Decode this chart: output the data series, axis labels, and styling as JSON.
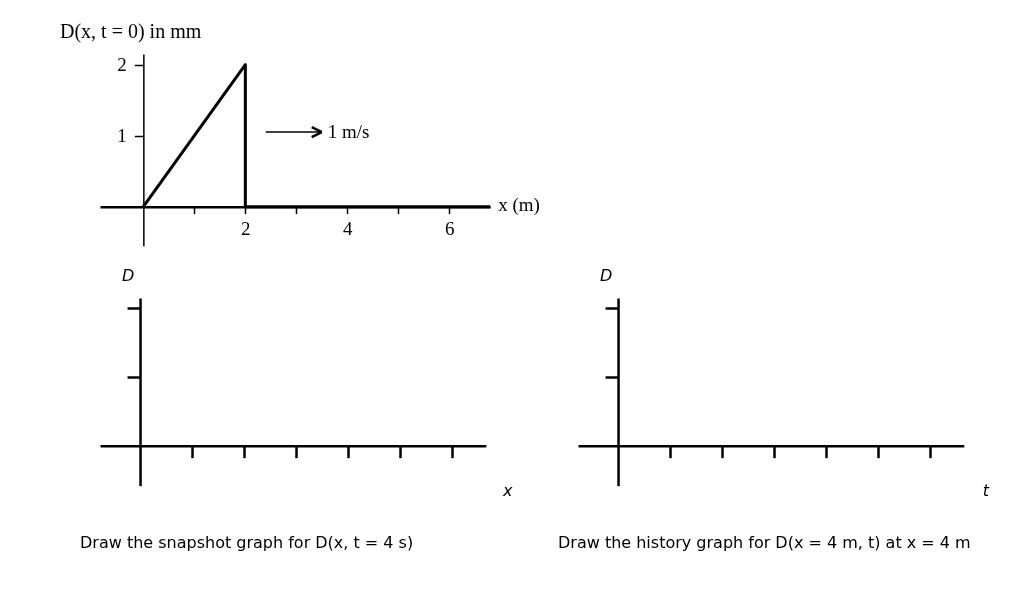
{
  "chart_data": [
    {
      "type": "line",
      "ylabel": "D(x, t = 0) in mm",
      "xlabel": "x (m)",
      "x": [
        0,
        2,
        2,
        6.8
      ],
      "series": [
        {
          "color": "#000000",
          "values": [
            0,
            2,
            0,
            0
          ]
        }
      ],
      "xlim": [
        -0.85,
        6.8
      ],
      "ylim": [
        -0.55,
        2.15
      ],
      "xticks": [
        {
          "value": 1,
          "label": null
        },
        2,
        {
          "value": 3,
          "label": null
        },
        4,
        {
          "value": 5,
          "label": null
        },
        6
      ],
      "yticks": [
        1,
        2
      ],
      "annotations": [
        "1 m/s"
      ],
      "grid": false,
      "legend": false,
      "marker": "none",
      "line_style": "solid"
    },
    {
      "type": "other",
      "ylabel": "D",
      "xlabel": "x",
      "annotations": [
        "Draw the snapshot graph for D(x, t = 4 s)"
      ]
    },
    {
      "type": "other",
      "ylabel": "D",
      "xlabel": "t",
      "annotations": [
        "Draw the history graph for D(x = 4 m, t) at x = 4 m"
      ]
    }
  ]
}
